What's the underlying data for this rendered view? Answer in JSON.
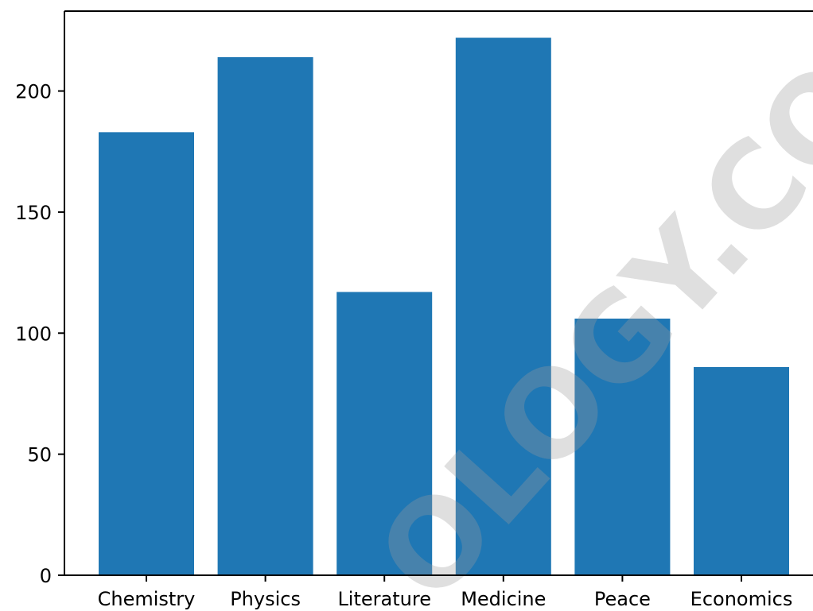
{
  "chart_data": {
    "type": "bar",
    "title": "",
    "xlabel": "",
    "ylabel": "",
    "categories": [
      "Chemistry",
      "Physics",
      "Literature",
      "Medicine",
      "Peace",
      "Economics"
    ],
    "values": [
      183,
      214,
      117,
      222,
      106,
      86
    ],
    "ylim": [
      0,
      233
    ],
    "yticks": [
      0,
      50,
      100,
      150,
      200
    ],
    "grid": false,
    "bar_color": "#1f77b4"
  },
  "watermark": {
    "text": "OLOGY.CO"
  }
}
